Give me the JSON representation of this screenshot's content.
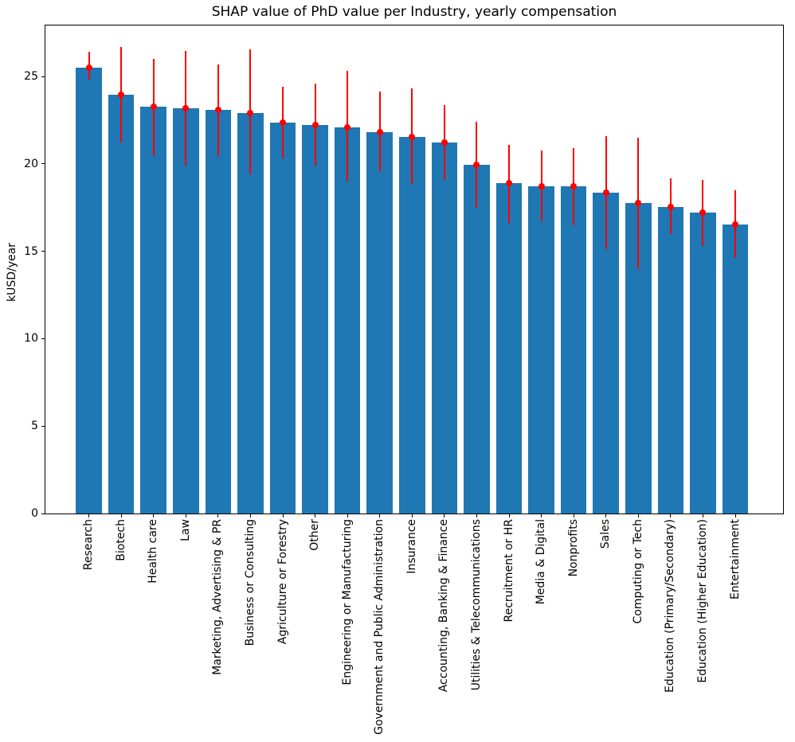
{
  "chart_data": {
    "type": "bar",
    "title": "SHAP value of PhD value per Industry, yearly compensation",
    "xlabel": "",
    "ylabel": "kUSD/year",
    "categories": [
      "Research",
      "Biotech",
      "Health care",
      "Law",
      "Marketing, Advertising & PR",
      "Business or Consulting",
      "Agriculture or Forestry",
      "Other",
      "Engineering or Manufacturing",
      "Government and Public Administration",
      "Insurance",
      "Accounting, Banking & Finance",
      "Utilities & Telecommunications",
      "Recruitment or HR",
      "Media & Digital",
      "Nonprofits",
      "Sales",
      "Computing or Tech",
      "Education (Primary/Secondary)",
      "Education (Higher Education)",
      "Entertainment"
    ],
    "values": [
      25.5,
      23.95,
      23.25,
      23.2,
      23.1,
      22.9,
      22.35,
      22.2,
      22.1,
      21.8,
      21.55,
      21.2,
      19.95,
      18.9,
      18.7,
      18.7,
      18.35,
      17.75,
      17.55,
      17.2,
      16.55
    ],
    "error_whisker_low": [
      24.8,
      21.2,
      20.45,
      19.9,
      20.45,
      19.4,
      20.3,
      19.9,
      19.0,
      19.6,
      18.85,
      19.1,
      17.5,
      16.6,
      16.7,
      16.5,
      15.1,
      14.0,
      16.0,
      15.3,
      14.6
    ],
    "error_whisker_high": [
      26.4,
      26.7,
      26.0,
      26.45,
      25.7,
      26.55,
      24.4,
      24.6,
      25.3,
      24.15,
      24.3,
      23.35,
      22.4,
      21.1,
      20.75,
      20.9,
      21.6,
      21.5,
      19.15,
      19.1,
      18.5
    ],
    "yticks": [
      0,
      5,
      10,
      15,
      20,
      25
    ],
    "ylim": [
      0,
      27.96
    ],
    "grid": false,
    "legend": "none",
    "bar_color": "#1f77b4",
    "error_color": "#ff0000",
    "marker_shape": "circle"
  }
}
